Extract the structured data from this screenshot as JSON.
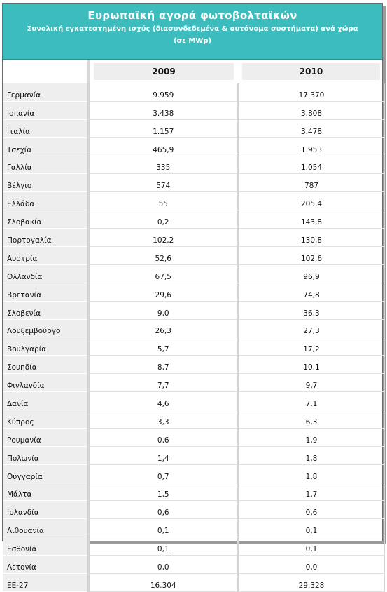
{
  "header": {
    "title": "Ευρωπαϊκή αγορά φωτοβολταϊκών",
    "subtitle": "Συνολική εγκατεστημένη ισχύς (διασυνδεδεμένα & αυτόνομα συστήματα) ανά χώρα",
    "unit": "(σε MWp)"
  },
  "columns": [
    "2009",
    "2010"
  ],
  "rows": [
    {
      "country": "Γερμανία",
      "y2009": "9.959",
      "y2010": "17.370"
    },
    {
      "country": "Ισπανία",
      "y2009": "3.438",
      "y2010": "3.808"
    },
    {
      "country": "Ιταλία",
      "y2009": "1.157",
      "y2010": "3.478"
    },
    {
      "country": "Τσεχία",
      "y2009": "465,9",
      "y2010": "1.953"
    },
    {
      "country": "Γαλλία",
      "y2009": "335",
      "y2010": "1.054"
    },
    {
      "country": "Βέλγιο",
      "y2009": "574",
      "y2010": "787"
    },
    {
      "country": "Ελλάδα",
      "y2009": "55",
      "y2010": "205,4"
    },
    {
      "country": "Σλοβακία",
      "y2009": "0,2",
      "y2010": "143,8"
    },
    {
      "country": "Πορτογαλία",
      "y2009": "102,2",
      "y2010": "130,8"
    },
    {
      "country": "Αυστρία",
      "y2009": "52,6",
      "y2010": "102,6"
    },
    {
      "country": "Ολλανδία",
      "y2009": "67,5",
      "y2010": "96,9"
    },
    {
      "country": "Βρετανία",
      "y2009": "29,6",
      "y2010": "74,8"
    },
    {
      "country": "Σλοβενία",
      "y2009": "9,0",
      "y2010": "36,3"
    },
    {
      "country": "Λουξεμβούργο",
      "y2009": "26,3",
      "y2010": "27,3"
    },
    {
      "country": "Βουλγαρία",
      "y2009": "5,7",
      "y2010": "17,2"
    },
    {
      "country": "Σουηδία",
      "y2009": "8,7",
      "y2010": "10,1"
    },
    {
      "country": "Φινλανδία",
      "y2009": "7,7",
      "y2010": "9,7"
    },
    {
      "country": "Δανία",
      "y2009": "4,6",
      "y2010": "7,1"
    },
    {
      "country": "Κύπρος",
      "y2009": "3,3",
      "y2010": "6,3"
    },
    {
      "country": "Ρουμανία",
      "y2009": "0,6",
      "y2010": "1,9"
    },
    {
      "country": "Πολωνία",
      "y2009": "1,4",
      "y2010": "1,8"
    },
    {
      "country": "Ουγγαρία",
      "y2009": "0,7",
      "y2010": "1,8"
    },
    {
      "country": "Μάλτα",
      "y2009": "1,5",
      "y2010": "1,7"
    },
    {
      "country": "Ιρλανδία",
      "y2009": "0,6",
      "y2010": "0,6"
    },
    {
      "country": "Λιθουανία",
      "y2009": "0,1",
      "y2010": "0,1"
    },
    {
      "country": "Εσθονία",
      "y2009": "0,1",
      "y2010": "0,1"
    },
    {
      "country": "Λετονία",
      "y2009": "0,0",
      "y2010": "0,0"
    },
    {
      "country": "ΕΕ-27",
      "y2009": "16.304",
      "y2010": "29.328"
    }
  ],
  "colors": {
    "banner": "#3cbcbc",
    "header_cell": "#eeeeee",
    "country_cell": "#eeeeee"
  }
}
